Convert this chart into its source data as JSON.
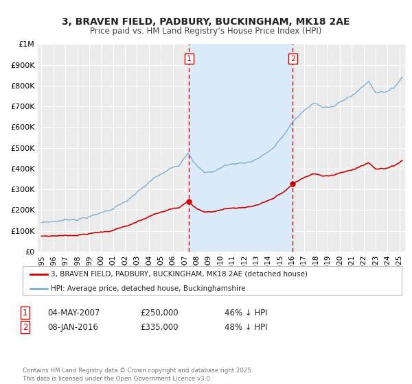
{
  "title": "3, BRAVEN FIELD, PADBURY, BUCKINGHAM, MK18 2AE",
  "subtitle": "Price paid vs. HM Land Registry’s House Price Index (HPI)",
  "background_color": "#ffffff",
  "plot_bg_color": "#ebebeb",
  "grid_color": "#ffffff",
  "shade_color": "#daeaf8",
  "red_line_color": "#cc0000",
  "blue_line_color": "#7bafd4",
  "vline_color": "#cc0000",
  "legend_label_red": "3, BRAVEN FIELD, PADBURY, BUCKINGHAM, MK18 2AE (detached house)",
  "legend_label_blue": "HPI: Average price, detached house, Buckinghamshire",
  "annotation1": [
    "1",
    "04-MAY-2007",
    "£250,000",
    "46% ↓ HPI"
  ],
  "annotation2": [
    "2",
    "08-JAN-2016",
    "£335,000",
    "48% ↓ HPI"
  ],
  "footer": "Contains HM Land Registry data © Crown copyright and database right 2025.\nThis data is licensed under the Open Government Licence v3.0.",
  "ylim": [
    0,
    1000000
  ],
  "yticks": [
    0,
    100000,
    200000,
    300000,
    400000,
    500000,
    600000,
    700000,
    800000,
    900000,
    1000000
  ],
  "ytick_labels": [
    "£0",
    "£100K",
    "£200K",
    "£300K",
    "£400K",
    "£500K",
    "£600K",
    "£700K",
    "£800K",
    "£900K",
    "£1M"
  ]
}
